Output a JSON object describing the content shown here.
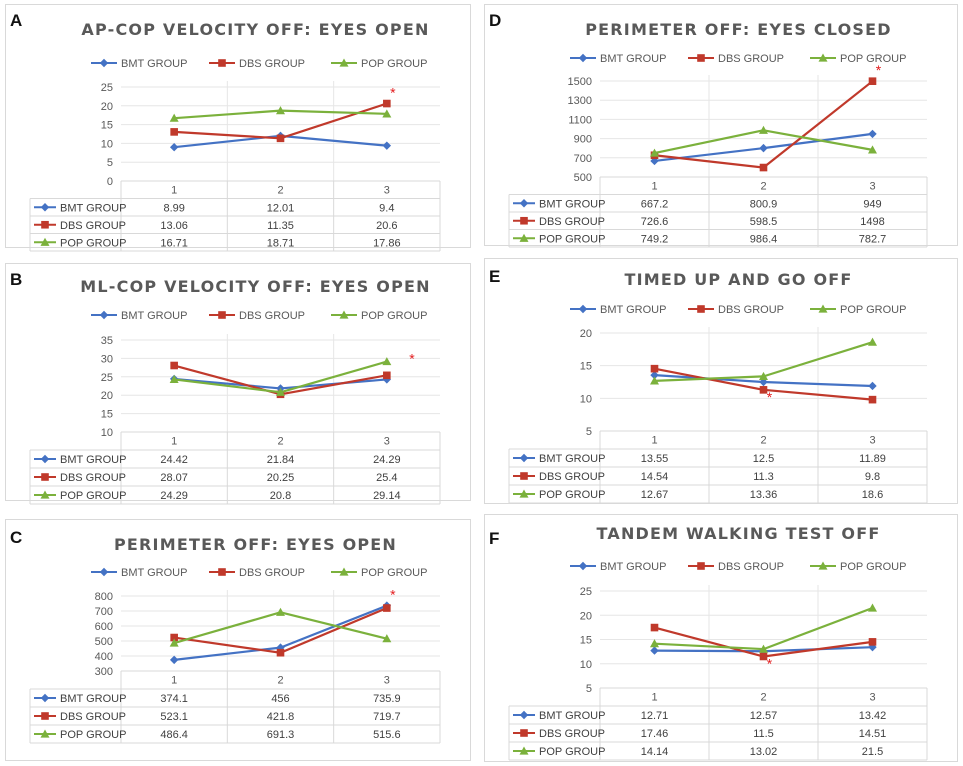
{
  "series_colors": {
    "BMT GROUP": "#4472c4",
    "DBS GROUP": "#c0392b",
    "POP GROUP": "#7bb13c"
  },
  "chart_data": [
    {
      "id": "A",
      "letter": "A",
      "type": "line",
      "title": "AP-COP VELOCITY OFF: EYES OPEN",
      "categories": [
        "1",
        "2",
        "3"
      ],
      "ylim": [
        0,
        25
      ],
      "yticks": [
        0,
        5,
        10,
        15,
        20,
        25
      ],
      "series": [
        {
          "name": "BMT GROUP",
          "values": [
            8.99,
            12.01,
            9.4
          ],
          "labels": [
            "8.99",
            "12.01",
            "9.4"
          ]
        },
        {
          "name": "DBS GROUP",
          "values": [
            13.06,
            11.35,
            20.6
          ],
          "labels": [
            "13.06",
            "11.35",
            "20.6"
          ]
        },
        {
          "name": "POP GROUP",
          "values": [
            16.71,
            18.71,
            17.86
          ],
          "labels": [
            "16.71",
            "18.71",
            "17.86"
          ]
        }
      ],
      "annotation": {
        "text": "*",
        "category_index": 2,
        "y": 20.6
      }
    },
    {
      "id": "B",
      "letter": "B",
      "type": "line",
      "title": "ML-COP VELOCITY OFF: EYES OPEN",
      "categories": [
        "1",
        "2",
        "3"
      ],
      "ylim": [
        10,
        35
      ],
      "yticks": [
        10,
        15,
        20,
        25,
        30,
        35
      ],
      "series": [
        {
          "name": "BMT GROUP",
          "values": [
            24.42,
            21.84,
            24.29
          ],
          "labels": [
            "24.42",
            "21.84",
            "24.29"
          ]
        },
        {
          "name": "DBS GROUP",
          "values": [
            28.07,
            20.25,
            25.4
          ],
          "labels": [
            "28.07",
            "20.25",
            "25.4"
          ]
        },
        {
          "name": "POP GROUP",
          "values": [
            24.29,
            20.8,
            29.14
          ],
          "labels": [
            "24.29",
            "20.8",
            "29.14"
          ]
        }
      ],
      "annotation": {
        "text": "*",
        "category_index": 2.18,
        "y": 27
      }
    },
    {
      "id": "C",
      "letter": "C",
      "type": "line",
      "title": "PERIMETER OFF: EYES OPEN",
      "categories": [
        "1",
        "2",
        "3"
      ],
      "ylim": [
        300,
        800
      ],
      "yticks": [
        300,
        400,
        500,
        600,
        700,
        800
      ],
      "series": [
        {
          "name": "BMT GROUP",
          "values": [
            374.1,
            456,
            735.9
          ],
          "labels": [
            "374.1",
            "456",
            "735.9"
          ]
        },
        {
          "name": "DBS GROUP",
          "values": [
            523.1,
            421.8,
            719.7
          ],
          "labels": [
            "523.1",
            "421.8",
            "719.7"
          ]
        },
        {
          "name": "POP GROUP",
          "values": [
            486.4,
            691.3,
            515.6
          ],
          "labels": [
            "486.4",
            "691.3",
            "515.6"
          ]
        }
      ],
      "annotation": {
        "text": "*",
        "category_index": 2,
        "y": 735.9
      }
    },
    {
      "id": "D",
      "letter": "D",
      "type": "line",
      "title": "PERIMETER OFF: EYES CLOSED",
      "categories": [
        "1",
        "2",
        "3"
      ],
      "ylim": [
        500,
        1500
      ],
      "yticks": [
        500,
        700,
        900,
        1100,
        1300,
        1500
      ],
      "series": [
        {
          "name": "BMT GROUP",
          "values": [
            667.2,
            800.9,
            949
          ],
          "labels": [
            "667.2",
            "800.9",
            "949"
          ]
        },
        {
          "name": "DBS GROUP",
          "values": [
            726.6,
            598.5,
            1498
          ],
          "labels": [
            "726.6",
            "598.5",
            "1498"
          ]
        },
        {
          "name": "POP GROUP",
          "values": [
            749.2,
            986.4,
            782.7
          ],
          "labels": [
            "749.2",
            "986.4",
            "782.7"
          ]
        }
      ],
      "annotation": {
        "text": "*",
        "category_index": 2,
        "y": 1498
      }
    },
    {
      "id": "E",
      "letter": "E",
      "type": "line",
      "title": "TIMED UP AND GO OFF",
      "categories": [
        "1",
        "2",
        "3"
      ],
      "ylim": [
        5,
        20
      ],
      "yticks": [
        5,
        10,
        15,
        20
      ],
      "series": [
        {
          "name": "BMT GROUP",
          "values": [
            13.55,
            12.5,
            11.89
          ],
          "labels": [
            "13.55",
            "12.5",
            "11.89"
          ]
        },
        {
          "name": "DBS GROUP",
          "values": [
            14.54,
            11.3,
            9.8
          ],
          "labels": [
            "14.54",
            "11.3",
            "9.8"
          ]
        },
        {
          "name": "POP GROUP",
          "values": [
            12.67,
            13.36,
            18.6
          ],
          "labels": [
            "12.67",
            "13.36",
            "18.6"
          ]
        }
      ],
      "annotation": {
        "text": "*",
        "category_index": 1,
        "y": 8.5
      }
    },
    {
      "id": "F",
      "letter": "F",
      "type": "line",
      "title": "TANDEM WALKING TEST OFF",
      "categories": [
        "1",
        "2",
        "3"
      ],
      "ylim": [
        5,
        25
      ],
      "yticks": [
        5,
        10,
        15,
        20,
        25
      ],
      "series": [
        {
          "name": "BMT GROUP",
          "values": [
            12.71,
            12.57,
            13.42
          ],
          "labels": [
            "12.71",
            "12.57",
            "13.42"
          ]
        },
        {
          "name": "DBS GROUP",
          "values": [
            17.46,
            11.5,
            14.51
          ],
          "labels": [
            "17.46",
            "11.5",
            "14.51"
          ]
        },
        {
          "name": "POP GROUP",
          "values": [
            14.14,
            13.02,
            21.5
          ],
          "labels": [
            "14.14",
            "13.02",
            "21.5"
          ]
        }
      ],
      "annotation": {
        "text": "*",
        "category_index": 1,
        "y": 7.8
      }
    }
  ]
}
